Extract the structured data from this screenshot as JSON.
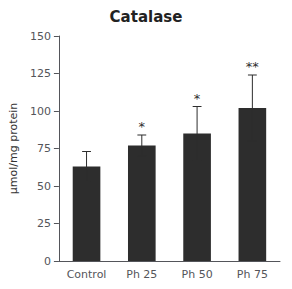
{
  "chart_data": {
    "type": "bar",
    "title": "Catalase",
    "categories": [
      "Control",
      "Ph 25",
      "Ph 50",
      "Ph 75"
    ],
    "values": [
      63,
      77,
      85,
      102
    ],
    "errors": [
      10,
      7,
      18,
      22
    ],
    "significance": [
      null,
      "*",
      "*",
      "**"
    ],
    "color": "#2d2d2d",
    "ylabel": "μmol/mg protein",
    "ylim": [
      0,
      150
    ],
    "yticks": [
      0,
      25,
      50,
      75,
      100,
      125,
      150
    ],
    "grid": false
  }
}
